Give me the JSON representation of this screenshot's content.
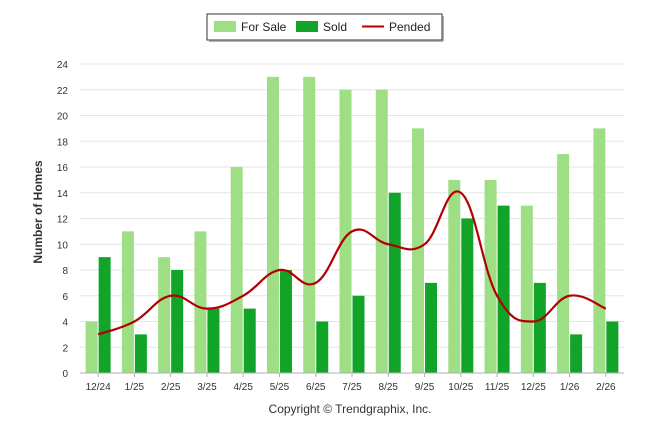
{
  "chart_data": {
    "type": "bar",
    "categories": [
      "12/24",
      "1/25",
      "2/25",
      "3/25",
      "4/25",
      "5/25",
      "6/25",
      "7/25",
      "8/25",
      "9/25",
      "10/25",
      "11/25",
      "12/25",
      "1/26",
      "2/26"
    ],
    "series": [
      {
        "name": "For Sale",
        "type": "bar",
        "color": "#9ede85",
        "values": [
          4,
          11,
          9,
          11,
          16,
          23,
          23,
          22,
          22,
          19,
          15,
          15,
          13,
          17,
          19
        ]
      },
      {
        "name": "Sold",
        "type": "bar",
        "color": "#12a329",
        "values": [
          9,
          3,
          8,
          5,
          5,
          8,
          4,
          6,
          14,
          7,
          12,
          13,
          7,
          3,
          4
        ]
      },
      {
        "name": "Pended",
        "type": "line",
        "color": "#b30000",
        "values": [
          3,
          4,
          6,
          5,
          6,
          8,
          7,
          11,
          10,
          10,
          14,
          6,
          4,
          6,
          5
        ]
      }
    ],
    "ylabel": "Number of Homes",
    "xlabel": "",
    "ylim": [
      0,
      24
    ],
    "yticks": [
      "0",
      "2",
      "4",
      "6",
      "8",
      "10",
      "12",
      "14",
      "16",
      "18",
      "20",
      "22",
      "24"
    ],
    "grid": true,
    "legend_position": "top-center",
    "footer": "Copyright © Trendgraphix, Inc."
  }
}
